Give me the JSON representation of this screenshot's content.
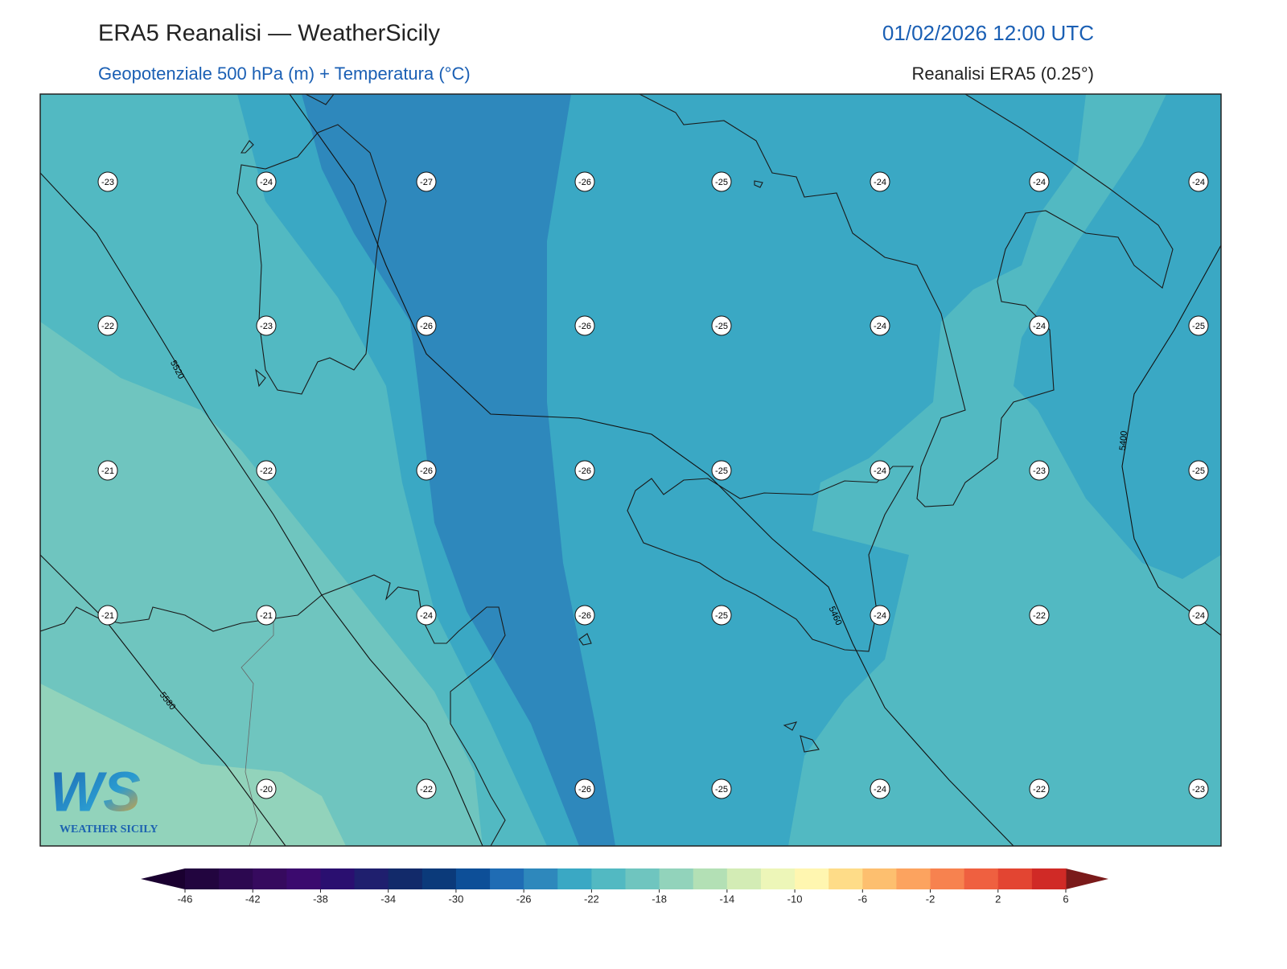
{
  "header": {
    "title": "ERA5 Reanalisi — WeatherSicily",
    "datetime": "01/02/2026 12:00 UTC",
    "subtitle": "Geopotenziale 500 hPa (m) + Temperatura (°C)",
    "source": "Reanalisi ERA5 (0.25°)"
  },
  "map": {
    "station_rows": [
      [
        -23,
        -24,
        -27,
        -26,
        -25,
        -24,
        -24,
        -24
      ],
      [
        -22,
        -23,
        -26,
        -26,
        -25,
        -24,
        -24,
        -25
      ],
      [
        -21,
        -22,
        -26,
        -26,
        -25,
        -24,
        -23,
        -25
      ],
      [
        -21,
        -21,
        -24,
        -26,
        -25,
        -24,
        -22,
        -24
      ],
      [
        null,
        -20,
        -22,
        -26,
        -25,
        -24,
        -22,
        -23
      ]
    ],
    "contour_labels": [
      "5520",
      "5580",
      "5460",
      "5400"
    ]
  },
  "colorbar": {
    "ticks": [
      -46,
      -42,
      -38,
      -34,
      -30,
      -26,
      -22,
      -18,
      -14,
      -10,
      -6,
      -2,
      2,
      6
    ],
    "colors": [
      "#22053f",
      "#2c0850",
      "#360a5e",
      "#3b0a6e",
      "#2a0f70",
      "#1f1f6e",
      "#122a6a",
      "#0b3a7a",
      "#0d4f98",
      "#1f6cb4",
      "#2e88bc",
      "#3aa8c4",
      "#52b9c2",
      "#6fc5bf",
      "#92d3bb",
      "#b3e0b5",
      "#d3ecb5",
      "#edf6b8",
      "#fff6b0",
      "#fedc88",
      "#fdbf6f",
      "#fca35f",
      "#f7824f",
      "#ef6040",
      "#e34532",
      "#d02a26"
    ],
    "extend_colors": [
      "#1a0030",
      "#7a1a1a"
    ]
  },
  "logo": {
    "mark": "WS",
    "name": "WEATHER SICILY"
  }
}
